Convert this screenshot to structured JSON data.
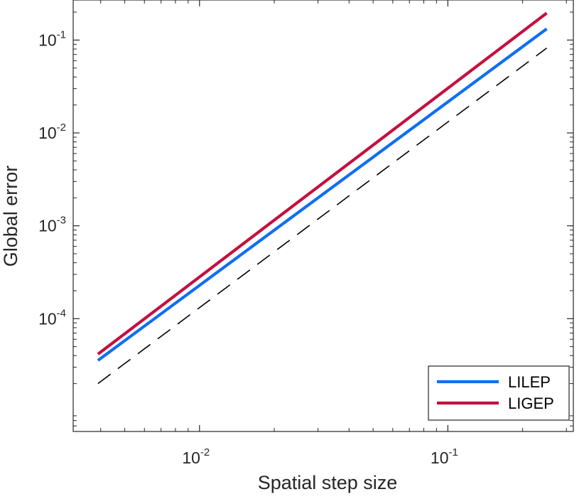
{
  "chart_data": {
    "type": "line",
    "title": "",
    "xlabel": "Spatial step size",
    "ylabel": "Global error",
    "xscale": "log",
    "yscale": "log",
    "xlim": [
      0.0031,
      0.32
    ],
    "ylim": [
      6.1e-06,
      0.27
    ],
    "xticks": [
      {
        "value": 0.01,
        "base": "10",
        "exp": "-2"
      },
      {
        "value": 0.1,
        "base": "10",
        "exp": "-1"
      }
    ],
    "yticks": [
      {
        "value": 0.0001,
        "base": "10",
        "exp": "-4"
      },
      {
        "value": 0.001,
        "base": "10",
        "exp": "-3"
      },
      {
        "value": 0.01,
        "base": "10",
        "exp": "-2"
      },
      {
        "value": 0.1,
        "base": "10",
        "exp": "-1"
      }
    ],
    "grid": false,
    "legend_position": "bottom-right",
    "series": [
      {
        "name": "LILEP",
        "color": "#0f6ff2",
        "style": "solid",
        "x": [
          0.0039,
          0.25
        ],
        "y": [
          3.55e-05,
          0.132
        ]
      },
      {
        "name": "LIGEP",
        "color": "#c4103f",
        "style": "solid",
        "x": [
          0.0039,
          0.25
        ],
        "y": [
          4.15e-05,
          0.195
        ]
      },
      {
        "color": "#000000",
        "style": "dashed",
        "x": [
          0.0039,
          0.25
        ],
        "y": [
          2e-05,
          0.082
        ]
      }
    ]
  }
}
